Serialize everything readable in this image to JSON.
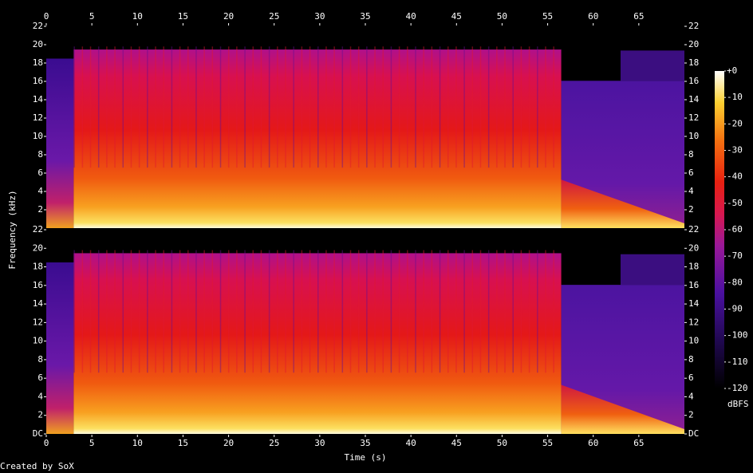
{
  "chart_data": {
    "type": "spectrogram",
    "xlabel": "Time (s)",
    "ylabel": "Frequency (kHz)",
    "xlim": [
      0,
      70
    ],
    "xticks": [
      0,
      5,
      10,
      15,
      20,
      25,
      30,
      35,
      40,
      45,
      50,
      55,
      60,
      65
    ],
    "panels": [
      {
        "ylim": [
          0,
          22
        ],
        "yticks": [
          2,
          4,
          6,
          8,
          10,
          12,
          14,
          16,
          18,
          20,
          22
        ]
      },
      {
        "ylim": [
          0,
          22
        ],
        "yticks": [
          {
            "value": 0,
            "label": "DC"
          },
          2,
          4,
          6,
          8,
          10,
          12,
          14,
          16,
          18,
          20,
          22
        ]
      }
    ],
    "colorbar": {
      "zlim": [
        -120,
        0
      ],
      "label": "dBFS",
      "zticks": [
        {
          "value": 0,
          "label": "+0"
        },
        -10,
        -20,
        -30,
        -40,
        -50,
        -60,
        -70,
        -80,
        -90,
        -100,
        -110,
        -120
      ]
    },
    "footer": "Created by SoX"
  }
}
